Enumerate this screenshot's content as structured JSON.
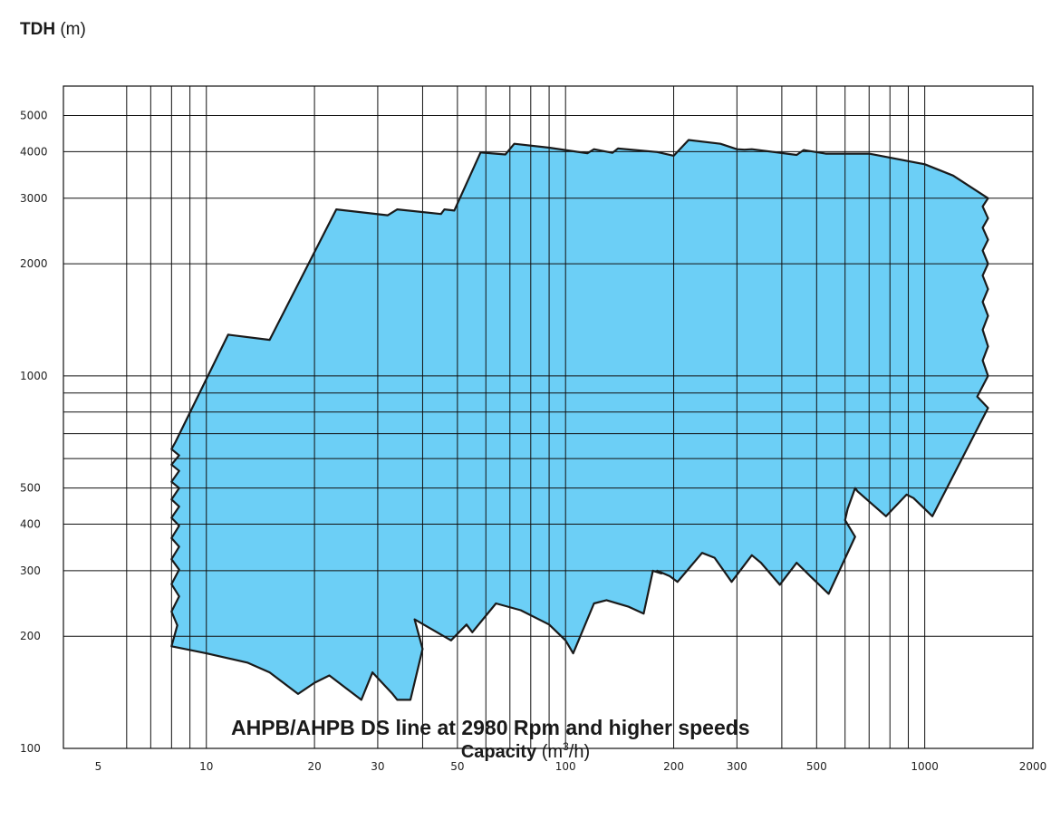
{
  "chart_data": {
    "type": "area",
    "x_scale": "log",
    "y_scale": "log",
    "xlim": [
      4,
      2000
    ],
    "ylim": [
      100,
      6000
    ],
    "grid": true,
    "fill_color": "#6ccff6",
    "outline_color": "#1a1a1a",
    "ylabel": {
      "bold": "TDH",
      "unit": " (m)"
    },
    "xlabel": {
      "bold": "Capacity",
      "unit_prefix": " (m",
      "unit_sup": "3",
      "unit_suffix": "/h)"
    },
    "annotation": "AHPB/AHPB DS  line at 2980 Rpm and higher speeds",
    "x_tick_labels": [
      {
        "value": 5,
        "label": "5"
      },
      {
        "value": 10,
        "label": "10"
      },
      {
        "value": 20,
        "label": "20"
      },
      {
        "value": 30,
        "label": "30"
      },
      {
        "value": 50,
        "label": "50"
      },
      {
        "value": 100,
        "label": "100"
      },
      {
        "value": 200,
        "label": "200"
      },
      {
        "value": 300,
        "label": "300"
      },
      {
        "value": 500,
        "label": "500"
      },
      {
        "value": 1000,
        "label": "1000"
      },
      {
        "value": 2000,
        "label": "2000"
      }
    ],
    "y_tick_labels": [
      {
        "value": 100,
        "label": "100"
      },
      {
        "value": 200,
        "label": "200"
      },
      {
        "value": 300,
        "label": "300"
      },
      {
        "value": 400,
        "label": "400"
      },
      {
        "value": 500,
        "label": "500"
      },
      {
        "value": 1000,
        "label": "1000"
      },
      {
        "value": 2000,
        "label": "2000"
      },
      {
        "value": 3000,
        "label": "3000"
      },
      {
        "value": 4000,
        "label": "4000"
      },
      {
        "value": 5000,
        "label": "5000"
      }
    ],
    "x_gridlines": [
      6,
      7,
      8,
      9,
      10,
      20,
      30,
      40,
      50,
      60,
      70,
      80,
      90,
      100,
      200,
      300,
      400,
      500,
      600,
      700,
      800,
      900,
      1000
    ],
    "y_gridlines": [
      200,
      300,
      400,
      500,
      600,
      700,
      800,
      900,
      1000,
      2000,
      3000,
      4000,
      5000
    ],
    "envelope": [
      [
        8.0,
        188
      ],
      [
        8.3,
        214
      ],
      [
        8.0,
        233
      ],
      [
        8.4,
        256
      ],
      [
        8.0,
        276
      ],
      [
        8.4,
        302
      ],
      [
        8.0,
        322
      ],
      [
        8.4,
        348
      ],
      [
        8.0,
        367
      ],
      [
        8.4,
        396
      ],
      [
        8.0,
        416
      ],
      [
        8.4,
        446
      ],
      [
        8.0,
        466
      ],
      [
        8.4,
        500
      ],
      [
        8.0,
        520
      ],
      [
        8.4,
        556
      ],
      [
        8.0,
        578
      ],
      [
        8.4,
        612
      ],
      [
        8.0,
        636
      ],
      [
        8.2,
        664
      ],
      [
        11.5,
        1290
      ],
      [
        15,
        1250
      ],
      [
        23,
        2800
      ],
      [
        32,
        2700
      ],
      [
        34,
        2800
      ],
      [
        45,
        2720
      ],
      [
        46,
        2800
      ],
      [
        49,
        2780
      ],
      [
        58,
        3980
      ],
      [
        68,
        3930
      ],
      [
        72,
        4200
      ],
      [
        90,
        4100
      ],
      [
        115,
        3960
      ],
      [
        120,
        4060
      ],
      [
        135,
        3970
      ],
      [
        140,
        4080
      ],
      [
        180,
        3990
      ],
      [
        200,
        3900
      ],
      [
        220,
        4300
      ],
      [
        270,
        4200
      ],
      [
        300,
        4060
      ],
      [
        315,
        4050
      ],
      [
        330,
        4060
      ],
      [
        440,
        3920
      ],
      [
        460,
        4040
      ],
      [
        530,
        3950
      ],
      [
        700,
        3950
      ],
      [
        1000,
        3700
      ],
      [
        1200,
        3450
      ],
      [
        1500,
        3000
      ],
      [
        1450,
        2850
      ],
      [
        1500,
        2650
      ],
      [
        1450,
        2500
      ],
      [
        1500,
        2320
      ],
      [
        1450,
        2170
      ],
      [
        1500,
        2000
      ],
      [
        1450,
        1860
      ],
      [
        1500,
        1710
      ],
      [
        1450,
        1580
      ],
      [
        1500,
        1450
      ],
      [
        1450,
        1330
      ],
      [
        1500,
        1200
      ],
      [
        1450,
        1100
      ],
      [
        1500,
        1000
      ],
      [
        1400,
        880
      ],
      [
        1500,
        820
      ],
      [
        1050,
        420
      ],
      [
        930,
        470
      ],
      [
        890,
        480
      ],
      [
        780,
        420
      ],
      [
        650,
        490
      ],
      [
        640,
        500
      ],
      [
        610,
        440
      ],
      [
        600,
        410
      ],
      [
        640,
        370
      ],
      [
        540,
        260
      ],
      [
        480,
        290
      ],
      [
        440,
        315
      ],
      [
        395,
        275
      ],
      [
        350,
        315
      ],
      [
        330,
        330
      ],
      [
        290,
        280
      ],
      [
        260,
        325
      ],
      [
        240,
        335
      ],
      [
        205,
        280
      ],
      [
        195,
        290
      ],
      [
        180,
        300
      ],
      [
        185,
        295
      ],
      [
        175,
        300
      ],
      [
        165,
        230
      ],
      [
        150,
        240
      ],
      [
        130,
        250
      ],
      [
        120,
        245
      ],
      [
        105,
        180
      ],
      [
        100,
        195
      ],
      [
        90,
        215
      ],
      [
        75,
        235
      ],
      [
        64,
        245
      ],
      [
        55,
        205
      ],
      [
        53,
        215
      ],
      [
        48,
        195
      ],
      [
        38,
        222
      ],
      [
        40,
        185
      ],
      [
        37,
        135
      ],
      [
        34,
        135
      ],
      [
        33,
        140
      ],
      [
        29,
        160
      ],
      [
        27,
        135
      ],
      [
        22,
        157
      ],
      [
        20,
        150
      ],
      [
        18,
        140
      ],
      [
        15,
        160
      ],
      [
        13,
        170
      ],
      [
        10,
        180
      ],
      [
        8.0,
        188
      ]
    ]
  }
}
